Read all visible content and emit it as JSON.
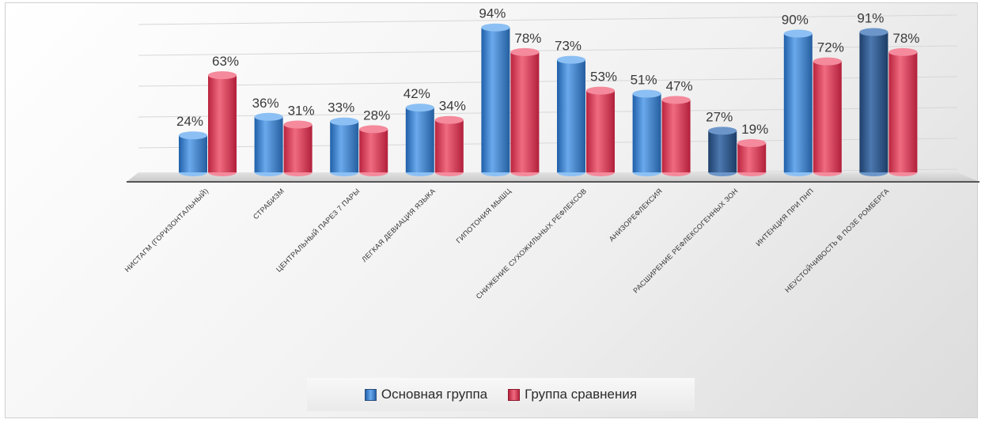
{
  "chart_data": {
    "type": "bar",
    "categories": [
      "нистагм (горизонтальный)",
      "страбизм",
      "центральный парез 7 пары",
      "легкая девиация языка",
      "гипотония мышц",
      "снижение сухожильных рефлексов",
      "анизорефлексия",
      "расширение рефлексогенных зон",
      "интенция при ПНП",
      "неустойчивость в позе Ромберга"
    ],
    "series": [
      {
        "name": "Основная группа",
        "values": [
          24,
          36,
          33,
          42,
          94,
          73,
          51,
          27,
          90,
          91
        ],
        "labels": [
          "24%",
          "36%",
          "33%",
          "42%",
          "94%",
          "73%",
          "51%",
          "27%",
          "90%",
          "91%"
        ],
        "color": "#4a8fd8"
      },
      {
        "name": "Группа сравнения",
        "values": [
          63,
          31,
          28,
          34,
          78,
          53,
          47,
          19,
          72,
          78
        ],
        "labels": [
          "63%",
          "31%",
          "28%",
          "34%",
          "78%",
          "53%",
          "47%",
          "19%",
          "72%",
          "78%"
        ],
        "color": "#e0465f"
      }
    ],
    "ylim": [
      0,
      100
    ],
    "grid": true,
    "legend_position": "bottom"
  }
}
